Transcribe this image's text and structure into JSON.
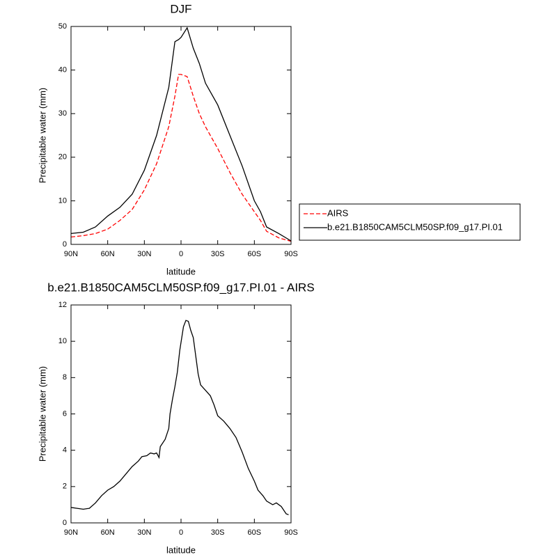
{
  "chart_data": [
    {
      "type": "line",
      "title": "DJF",
      "xlabel": "latitude",
      "ylabel": "Precipitable water (mm)",
      "x": [
        90,
        80,
        70,
        60,
        50,
        40,
        30,
        20,
        10,
        5,
        2,
        0,
        -5,
        -10,
        -15,
        -20,
        -30,
        -40,
        -50,
        -60,
        -65,
        -70,
        -80,
        -90
      ],
      "series": [
        {
          "name": "AIRS",
          "color": "#ff0000",
          "dashed": true,
          "values": [
            1.7,
            2,
            2.5,
            3.5,
            5.5,
            8,
            12.5,
            18.5,
            27,
            34,
            39,
            39,
            38.5,
            34,
            30,
            27,
            22,
            16.5,
            11.5,
            7.5,
            5.5,
            3,
            1.5,
            0.7
          ]
        },
        {
          "name": "b.e21.B1850CAM5CLM50SP.f09_g17.PI.01",
          "color": "#000000",
          "dashed": false,
          "values": [
            2.5,
            2.8,
            4,
            6.5,
            8.5,
            11.5,
            17,
            25,
            36,
            46.5,
            47,
            47.5,
            49.7,
            45,
            41.5,
            37,
            32,
            25,
            18,
            10,
            7.5,
            4,
            2.5,
            0.8
          ]
        }
      ],
      "xlim": [
        90,
        -90
      ],
      "xticks": [
        {
          "value": 90,
          "label": "90N"
        },
        {
          "value": 60,
          "label": "60N"
        },
        {
          "value": 30,
          "label": "30N"
        },
        0,
        {
          "value": -30,
          "label": "30S"
        },
        {
          "value": -60,
          "label": "60S"
        },
        {
          "value": -90,
          "label": "90S"
        }
      ],
      "ylim": [
        0,
        50
      ],
      "yticks": [
        0,
        10,
        20,
        30,
        40,
        50
      ],
      "legend": "right"
    },
    {
      "type": "line",
      "title": "b.e21.B1850CAM5CLM50SP.f09_g17.PI.01 - AIRS",
      "xlabel": "latitude",
      "ylabel": "Precipitable water (mm)",
      "x": [
        90,
        85,
        80,
        75,
        70,
        65,
        60,
        55,
        50,
        45,
        40,
        35,
        32,
        28,
        25,
        22,
        20,
        18,
        17,
        13,
        10,
        9,
        7,
        5,
        3,
        1,
        -2,
        -4,
        -6,
        -8,
        -10,
        -12,
        -14,
        -16,
        -20,
        -24,
        -27,
        -30,
        -35,
        -40,
        -45,
        -50,
        -55,
        -60,
        -63,
        -67,
        -70,
        -75,
        -78,
        -82,
        -86,
        -88
      ],
      "series": [
        {
          "color": "#000000",
          "dashed": false,
          "values": [
            0.85,
            0.8,
            0.75,
            0.8,
            1.1,
            1.5,
            1.8,
            2,
            2.3,
            2.7,
            3.1,
            3.4,
            3.65,
            3.7,
            3.85,
            3.8,
            3.85,
            3.6,
            4.2,
            4.6,
            5.2,
            6.0,
            6.8,
            7.5,
            8.3,
            9.5,
            10.8,
            11.15,
            11.1,
            10.6,
            10.2,
            9.2,
            8.2,
            7.6,
            7.3,
            7.0,
            6.5,
            5.9,
            5.6,
            5.2,
            4.7,
            3.9,
            3.0,
            2.3,
            1.8,
            1.5,
            1.2,
            1.0,
            1.1,
            0.9,
            0.5,
            0.45
          ]
        }
      ],
      "xlim": [
        90,
        -90
      ],
      "xticks": [
        {
          "value": 90,
          "label": "90N"
        },
        {
          "value": 60,
          "label": "60N"
        },
        {
          "value": 30,
          "label": "30N"
        },
        0,
        {
          "value": -30,
          "label": "30S"
        },
        {
          "value": -60,
          "label": "60S"
        },
        {
          "value": -90,
          "label": "90S"
        }
      ],
      "ylim": [
        0,
        12
      ],
      "yticks": [
        0,
        2,
        4,
        6,
        8,
        10,
        12
      ]
    }
  ]
}
